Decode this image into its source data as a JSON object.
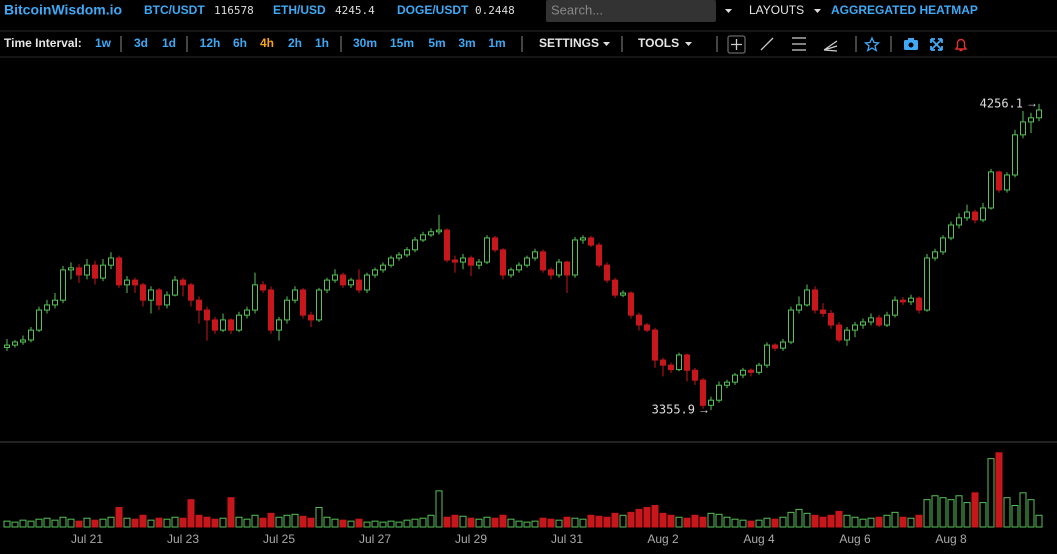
{
  "header": {
    "logo": "BitcoinWisdom.io",
    "tickers": [
      {
        "symbol": "BTC/USDT",
        "price": 116578
      },
      {
        "symbol": "ETH/USD",
        "price": 4245.4
      },
      {
        "symbol": "DOGE/USDT",
        "price": 0.2448
      }
    ],
    "search_placeholder": "Search...",
    "layouts": "LAYOUTS",
    "heatmap": "AGGREGATED HEATMAP"
  },
  "toolbar": {
    "label": "Time Interval:",
    "intervals": [
      {
        "label": "1w"
      },
      {
        "label": "3d"
      },
      {
        "label": "1d"
      },
      {
        "label": "12h"
      },
      {
        "label": "6h"
      },
      {
        "label": "4h",
        "active": true
      },
      {
        "label": "2h"
      },
      {
        "label": "1h"
      },
      {
        "label": "30m"
      },
      {
        "label": "15m"
      },
      {
        "label": "5m"
      },
      {
        "label": "3m"
      },
      {
        "label": "1m"
      }
    ],
    "settings": "SETTINGS",
    "tools": "TOOLS"
  },
  "chart_data": {
    "type": "candlestick",
    "categories": [
      null,
      null,
      null,
      null,
      null,
      null,
      null,
      null,
      null,
      null,
      "Jul 21",
      null,
      null,
      null,
      null,
      null,
      null,
      null,
      null,
      null,
      null,
      null,
      "Jul 23",
      null,
      null,
      null,
      null,
      null,
      null,
      null,
      null,
      null,
      null,
      null,
      "Jul 25",
      null,
      null,
      null,
      null,
      null,
      null,
      null,
      null,
      null,
      null,
      null,
      "Jul 27",
      null,
      null,
      null,
      null,
      null,
      null,
      null,
      null,
      null,
      null,
      null,
      "Jul 29",
      null,
      null,
      null,
      null,
      null,
      null,
      null,
      null,
      null,
      null,
      null,
      "Jul 31",
      null,
      null,
      null,
      null,
      null,
      null,
      null,
      null,
      null,
      null,
      null,
      "Aug 2",
      null,
      null,
      null,
      null,
      null,
      null,
      null,
      null,
      null,
      null,
      null,
      "Aug 4",
      null,
      null,
      null,
      null,
      null,
      null,
      null,
      null,
      null,
      null,
      null,
      "Aug 6",
      null,
      null,
      null,
      null,
      null,
      null,
      null,
      null,
      null,
      null,
      null,
      "Aug 8",
      null,
      null,
      null,
      null,
      null,
      null,
      null,
      null,
      null,
      null,
      null
    ],
    "ohlc": [
      [
        3540,
        3565,
        3530,
        3547
      ],
      [
        3547,
        3562,
        3540,
        3556
      ],
      [
        3556,
        3575,
        3548,
        3562
      ],
      [
        3562,
        3600,
        3555,
        3591
      ],
      [
        3591,
        3660,
        3585,
        3650
      ],
      [
        3650,
        3680,
        3640,
        3665
      ],
      [
        3665,
        3700,
        3655,
        3679
      ],
      [
        3679,
        3780,
        3670,
        3768
      ],
      [
        3768,
        3790,
        3740,
        3774
      ],
      [
        3774,
        3785,
        3730,
        3753
      ],
      [
        3753,
        3800,
        3740,
        3782
      ],
      [
        3782,
        3795,
        3725,
        3744
      ],
      [
        3744,
        3800,
        3735,
        3782
      ],
      [
        3782,
        3820,
        3770,
        3803
      ],
      [
        3803,
        3810,
        3715,
        3724
      ],
      [
        3724,
        3750,
        3700,
        3738
      ],
      [
        3738,
        3745,
        3700,
        3724
      ],
      [
        3724,
        3730,
        3660,
        3679
      ],
      [
        3679,
        3720,
        3640,
        3709
      ],
      [
        3709,
        3715,
        3650,
        3665
      ],
      [
        3665,
        3705,
        3655,
        3694
      ],
      [
        3694,
        3750,
        3690,
        3738
      ],
      [
        3738,
        3745,
        3690,
        3724
      ],
      [
        3724,
        3730,
        3660,
        3679
      ],
      [
        3679,
        3690,
        3610,
        3650
      ],
      [
        3650,
        3660,
        3560,
        3621
      ],
      [
        3621,
        3630,
        3580,
        3591
      ],
      [
        3591,
        3640,
        3585,
        3621
      ],
      [
        3621,
        3625,
        3580,
        3591
      ],
      [
        3591,
        3645,
        3585,
        3635
      ],
      [
        3635,
        3660,
        3625,
        3650
      ],
      [
        3650,
        3760,
        3640,
        3724
      ],
      [
        3724,
        3735,
        3700,
        3709
      ],
      [
        3709,
        3720,
        3580,
        3591
      ],
      [
        3591,
        3630,
        3560,
        3621
      ],
      [
        3621,
        3690,
        3610,
        3679
      ],
      [
        3679,
        3720,
        3670,
        3709
      ],
      [
        3709,
        3715,
        3625,
        3635
      ],
      [
        3635,
        3645,
        3600,
        3621
      ],
      [
        3621,
        3715,
        3615,
        3709
      ],
      [
        3709,
        3745,
        3700,
        3738
      ],
      [
        3738,
        3770,
        3730,
        3753
      ],
      [
        3753,
        3760,
        3715,
        3724
      ],
      [
        3724,
        3745,
        3715,
        3738
      ],
      [
        3738,
        3770,
        3700,
        3709
      ],
      [
        3709,
        3760,
        3700,
        3753
      ],
      [
        3753,
        3775,
        3745,
        3768
      ],
      [
        3768,
        3790,
        3760,
        3782
      ],
      [
        3782,
        3810,
        3775,
        3803
      ],
      [
        3803,
        3820,
        3795,
        3812
      ],
      [
        3812,
        3835,
        3805,
        3827
      ],
      [
        3827,
        3865,
        3820,
        3856
      ],
      [
        3856,
        3880,
        3850,
        3871
      ],
      [
        3871,
        3890,
        3865,
        3880
      ],
      [
        3880,
        3930,
        3872,
        3885
      ],
      [
        3885,
        3890,
        3790,
        3797
      ],
      [
        3797,
        3810,
        3760,
        3791
      ],
      [
        3791,
        3815,
        3770,
        3803
      ],
      [
        3803,
        3810,
        3750,
        3782
      ],
      [
        3782,
        3800,
        3770,
        3791
      ],
      [
        3791,
        3870,
        3785,
        3862
      ],
      [
        3862,
        3868,
        3820,
        3827
      ],
      [
        3827,
        3832,
        3740,
        3753
      ],
      [
        3753,
        3775,
        3745,
        3768
      ],
      [
        3768,
        3790,
        3760,
        3782
      ],
      [
        3782,
        3810,
        3775,
        3803
      ],
      [
        3803,
        3830,
        3795,
        3821
      ],
      [
        3821,
        3828,
        3760,
        3768
      ],
      [
        3768,
        3775,
        3740,
        3753
      ],
      [
        3753,
        3800,
        3745,
        3791
      ],
      [
        3791,
        3795,
        3700,
        3753
      ],
      [
        3753,
        3865,
        3745,
        3856
      ],
      [
        3856,
        3870,
        3845,
        3862
      ],
      [
        3862,
        3868,
        3835,
        3841
      ],
      [
        3841,
        3848,
        3775,
        3782
      ],
      [
        3782,
        3790,
        3730,
        3738
      ],
      [
        3738,
        3745,
        3685,
        3694
      ],
      [
        3694,
        3708,
        3688,
        3700
      ],
      [
        3700,
        3705,
        3625,
        3635
      ],
      [
        3635,
        3642,
        3590,
        3606
      ],
      [
        3606,
        3612,
        3585,
        3591
      ],
      [
        3591,
        3598,
        3480,
        3503
      ],
      [
        3503,
        3510,
        3455,
        3488
      ],
      [
        3488,
        3495,
        3465,
        3475
      ],
      [
        3475,
        3525,
        3470,
        3518
      ],
      [
        3518,
        3522,
        3440,
        3473
      ],
      [
        3473,
        3480,
        3430,
        3444
      ],
      [
        3444,
        3450,
        3360,
        3370
      ],
      [
        3370,
        3395,
        3355.9,
        3385
      ],
      [
        3385,
        3440,
        3378,
        3429
      ],
      [
        3429,
        3445,
        3420,
        3438
      ],
      [
        3438,
        3465,
        3430,
        3459
      ],
      [
        3459,
        3480,
        3450,
        3473
      ],
      [
        3473,
        3478,
        3455,
        3467
      ],
      [
        3467,
        3495,
        3460,
        3488
      ],
      [
        3488,
        3555,
        3480,
        3547
      ],
      [
        3547,
        3552,
        3530,
        3538
      ],
      [
        3538,
        3565,
        3530,
        3556
      ],
      [
        3556,
        3660,
        3550,
        3650
      ],
      [
        3650,
        3690,
        3640,
        3665
      ],
      [
        3665,
        3725,
        3660,
        3709
      ],
      [
        3709,
        3720,
        3640,
        3650
      ],
      [
        3650,
        3670,
        3630,
        3640
      ],
      [
        3640,
        3650,
        3595,
        3606
      ],
      [
        3606,
        3615,
        3555,
        3562
      ],
      [
        3562,
        3600,
        3545,
        3591
      ],
      [
        3591,
        3615,
        3570,
        3606
      ],
      [
        3606,
        3625,
        3595,
        3615
      ],
      [
        3615,
        3640,
        3605,
        3627
      ],
      [
        3627,
        3635,
        3600,
        3606
      ],
      [
        3606,
        3645,
        3600,
        3635
      ],
      [
        3635,
        3690,
        3628,
        3679
      ],
      [
        3679,
        3688,
        3665,
        3674
      ],
      [
        3674,
        3695,
        3665,
        3685
      ],
      [
        3685,
        3690,
        3640,
        3650
      ],
      [
        3650,
        3815,
        3645,
        3803
      ],
      [
        3803,
        3830,
        3795,
        3821
      ],
      [
        3821,
        3870,
        3812,
        3862
      ],
      [
        3862,
        3910,
        3855,
        3900
      ],
      [
        3900,
        3935,
        3890,
        3921
      ],
      [
        3921,
        3960,
        3912,
        3938
      ],
      [
        3938,
        3945,
        3905,
        3915
      ],
      [
        3915,
        3965,
        3908,
        3950
      ],
      [
        3950,
        4065,
        3945,
        4056
      ],
      [
        4056,
        4060,
        3995,
        4003
      ],
      [
        4003,
        4055,
        3995,
        4047
      ],
      [
        4047,
        4180,
        4040,
        4165
      ],
      [
        4165,
        4235,
        4155,
        4203
      ],
      [
        4203,
        4230,
        4170,
        4215
      ],
      [
        4215,
        4256.1,
        4205,
        4238
      ]
    ],
    "volume": [
      6,
      5,
      7,
      6,
      8,
      9,
      7,
      10,
      8,
      6,
      9,
      7,
      8,
      10,
      20,
      9,
      8,
      12,
      7,
      9,
      8,
      10,
      9,
      28,
      12,
      10,
      8,
      9,
      30,
      10,
      8,
      12,
      9,
      14,
      10,
      12,
      13,
      11,
      9,
      20,
      10,
      8,
      7,
      6,
      8,
      5,
      6,
      5,
      6,
      5,
      7,
      8,
      9,
      12,
      37,
      10,
      12,
      11,
      9,
      8,
      10,
      9,
      12,
      8,
      6,
      5,
      6,
      9,
      8,
      7,
      10,
      9,
      8,
      12,
      11,
      10,
      14,
      12,
      15,
      18,
      20,
      22,
      14,
      12,
      10,
      9,
      12,
      10,
      14,
      13,
      10,
      8,
      7,
      6,
      7,
      9,
      8,
      10,
      15,
      18,
      14,
      12,
      10,
      12,
      16,
      12,
      10,
      8,
      9,
      10,
      12,
      15,
      10,
      9,
      12,
      28,
      32,
      30,
      28,
      32,
      25,
      35,
      25,
      70,
      76,
      30,
      22,
      35,
      28,
      12
    ],
    "ylim": [
      3268,
      4385
    ],
    "volume_ylim": [
      0,
      85
    ],
    "up_color": "#58c157",
    "down_color": "#c8161d",
    "marker_arrow": "→"
  }
}
